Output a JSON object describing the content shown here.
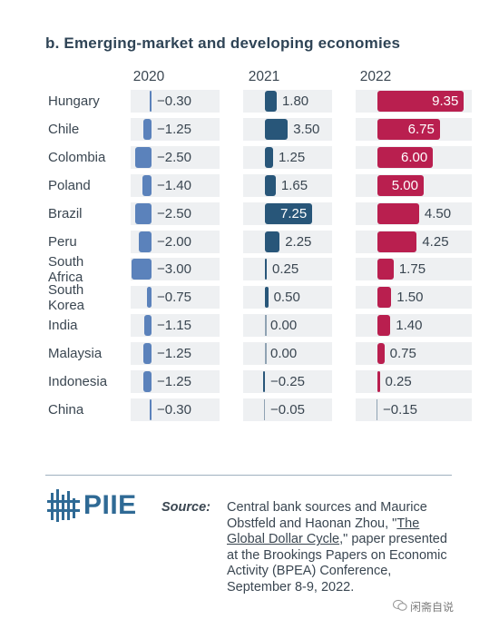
{
  "title": "b. Emerging-market and developing economies",
  "chart_data": {
    "type": "bar",
    "orientation": "horizontal",
    "title": "b. Emerging-market and developing economies",
    "categories": [
      [
        "Hungary"
      ],
      [
        "Chile"
      ],
      [
        "Colombia"
      ],
      [
        "Poland"
      ],
      [
        "Brazil"
      ],
      [
        "Peru"
      ],
      [
        "South",
        "Africa"
      ],
      [
        "South",
        "Korea"
      ],
      [
        "India"
      ],
      [
        "Malaysia"
      ],
      [
        "Indonesia"
      ],
      [
        "China"
      ]
    ],
    "series": [
      {
        "name": "2020",
        "color": "#5b82bb",
        "values": [
          -0.3,
          -1.25,
          -2.5,
          -1.4,
          -2.5,
          -2.0,
          -3.0,
          -0.75,
          -1.15,
          -1.25,
          -1.25,
          -0.3
        ],
        "labels": [
          "−0.30",
          "−1.25",
          "−2.50",
          "−1.40",
          "−2.50",
          "−2.00",
          "−3.00",
          "−0.75",
          "−1.15",
          "−1.25",
          "−1.25",
          "−0.30"
        ]
      },
      {
        "name": "2021",
        "color": "#285679",
        "values": [
          1.8,
          3.5,
          1.25,
          1.65,
          7.25,
          2.25,
          0.25,
          0.5,
          0.0,
          0.0,
          -0.25,
          -0.05
        ],
        "labels": [
          "1.80",
          "3.50",
          "1.25",
          "1.65",
          "7.25",
          "2.25",
          "0.25",
          "0.50",
          "0.00",
          "0.00",
          "−0.25",
          "−0.05"
        ]
      },
      {
        "name": "2022",
        "color": "#b91f4f",
        "values": [
          9.35,
          6.75,
          6.0,
          5.0,
          4.5,
          4.25,
          1.75,
          1.5,
          1.4,
          0.75,
          0.25,
          -0.15
        ],
        "labels": [
          "9.35",
          "6.75",
          "6.00",
          "5.00",
          "4.50",
          "4.25",
          "1.75",
          "1.50",
          "1.40",
          "0.75",
          "0.25",
          "−0.15"
        ]
      }
    ],
    "grid": false,
    "legend": "none"
  },
  "footer": {
    "logo_text": "PIIE",
    "source_label": "Source:",
    "source_before": "Central bank sources and Maurice Obstfeld and Haonan Zhou, \"",
    "source_link": "The Global Dollar Cycle",
    "source_after": ",\" paper presented at the Brookings Papers on Economic Activity (BPEA) Conference, September 8-9, 2022."
  },
  "watermark": "闲斋自说"
}
